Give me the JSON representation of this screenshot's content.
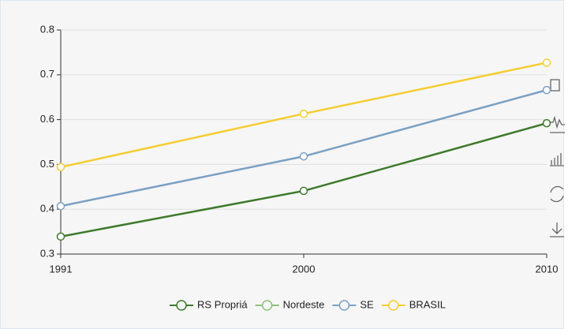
{
  "chart_data": {
    "type": "line",
    "categories": [
      "1991",
      "2000",
      "2010"
    ],
    "series": [
      {
        "name": "RS Propriá",
        "color": "#3d7a2c",
        "values": [
          0.339,
          0.441,
          0.592
        ]
      },
      {
        "name": "Nordeste",
        "color": "#8cc07a",
        "values": [
          null,
          null,
          null
        ]
      },
      {
        "name": "SE",
        "color": "#7ba0c4",
        "values": [
          0.407,
          0.518,
          0.666
        ]
      },
      {
        "name": "BRASIL",
        "color": "#f5cd32",
        "values": [
          0.494,
          0.613,
          0.727
        ]
      }
    ],
    "ylim": [
      0.3,
      0.8
    ],
    "yticks": [
      0.3,
      0.4,
      0.5,
      0.6,
      0.7,
      0.8
    ],
    "grid": true,
    "legend": "bottom"
  }
}
